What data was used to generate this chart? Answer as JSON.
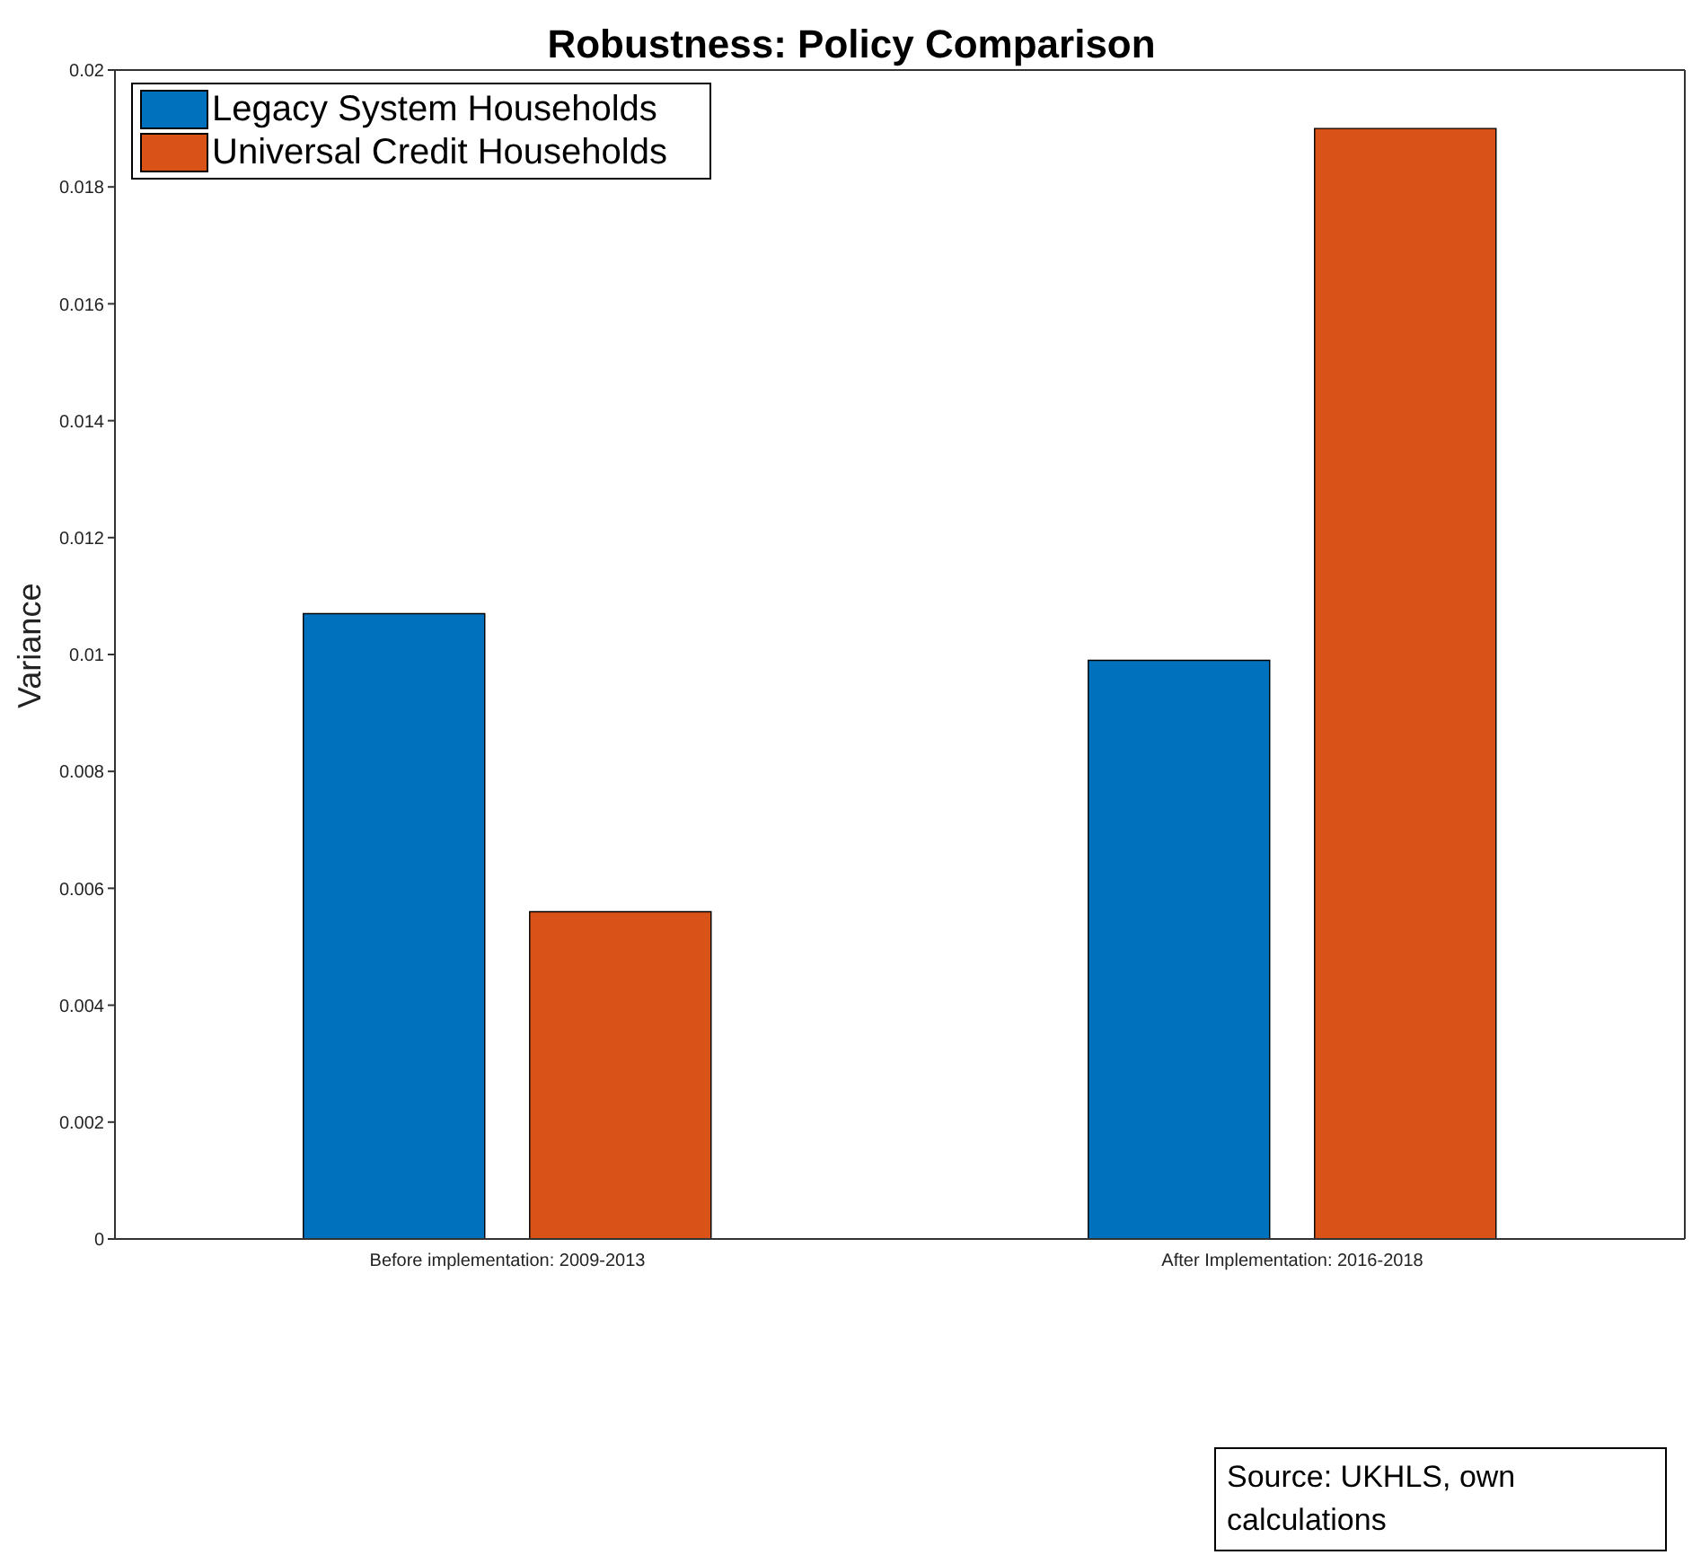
{
  "chart_data": {
    "type": "bar",
    "title": "Robustness: Policy Comparison",
    "ylabel": "Variance",
    "categories": [
      "Before implementation: 2009-2013",
      "After Implementation: 2016-2018"
    ],
    "series": [
      {
        "name": "Legacy System Households",
        "color": "#0072bd",
        "values": [
          0.0107,
          0.0099
        ]
      },
      {
        "name": "Universal Credit Households",
        "color": "#d95319",
        "values": [
          0.0056,
          0.019
        ]
      }
    ],
    "ylim": [
      0,
      0.02
    ],
    "yticks": [
      0,
      0.002,
      0.004,
      0.006,
      0.008,
      0.01,
      0.012,
      0.014,
      0.016,
      0.018,
      0.02
    ],
    "grid": false,
    "legend": "top left",
    "annotations": [
      "Source: UKHLS, own calculations"
    ]
  }
}
